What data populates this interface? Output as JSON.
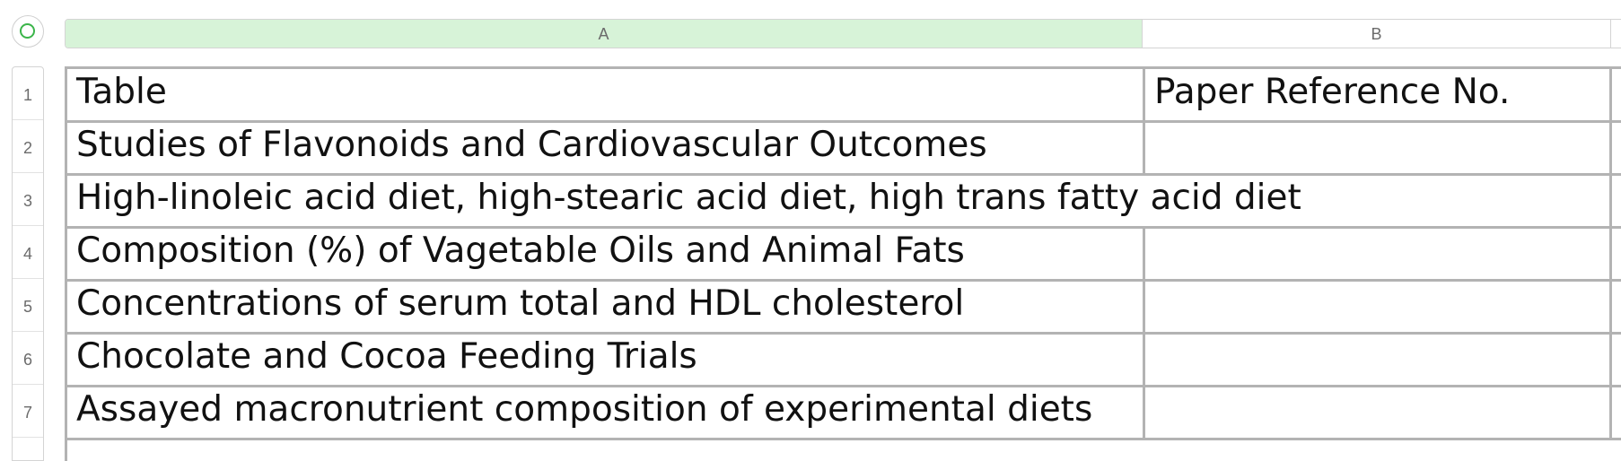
{
  "column_headers": [
    "A",
    "B"
  ],
  "row_numbers": [
    "1",
    "2",
    "3",
    "4",
    "5",
    "6",
    "7"
  ],
  "rows": [
    {
      "a": "Table",
      "b": "Paper Reference No."
    },
    {
      "a": "Studies of Flavonoids and Cardiovascular Outcomes",
      "b": ""
    },
    {
      "a": "High-linoleic acid diet, high-stearic acid diet, high trans fatty acid diet",
      "b": ""
    },
    {
      "a": "Composition (%) of Vagetable Oils and Animal Fats",
      "b": ""
    },
    {
      "a": "Concentrations of serum total and HDL cholesterol",
      "b": ""
    },
    {
      "a": "Chocolate and Cocoa Feeding Trials",
      "b": ""
    },
    {
      "a": "Assayed macronutrient composition of experimental diets",
      "b": ""
    }
  ],
  "colors": {
    "selected_column_header": "#d7f3d8",
    "grid_line": "#b3b3b3",
    "status_dot": "#3bb54a"
  }
}
